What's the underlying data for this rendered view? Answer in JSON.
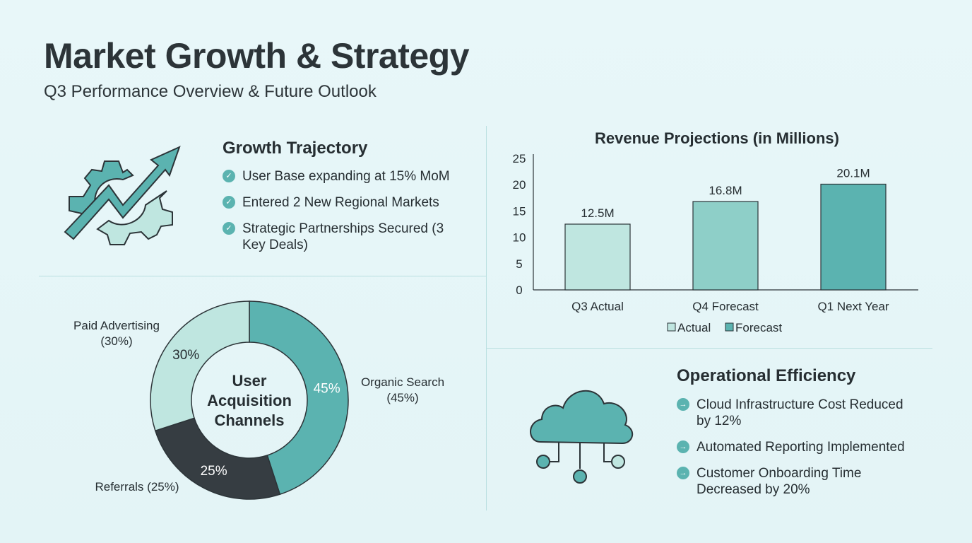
{
  "header": {
    "title": "Market Growth & Strategy",
    "subtitle": "Q3 Performance Overview & Future Outlook"
  },
  "growth": {
    "title": "Growth Trajectory",
    "icon": "gear-growth-arrow-icon",
    "items": [
      "User Base expanding at 15% MoM",
      "Entered 2 New Regional Markets",
      "Strategic Partnerships Secured (3 Key Deals)"
    ]
  },
  "efficiency": {
    "title": "Operational Efficiency",
    "icon": "cloud-network-icon",
    "items": [
      "Cloud Infrastructure Cost Reduced by 12%",
      "Automated Reporting Implemented",
      "Customer Onboarding Time Decreased by 20%"
    ]
  },
  "colors": {
    "light": "#bfe6e0",
    "mid": "#8ecfc8",
    "teal": "#5bb3b0",
    "dark": "#363d42"
  },
  "chart_data": [
    {
      "type": "bar",
      "title": "Revenue Projections (in Millions)",
      "categories": [
        "Q3 Actual",
        "Q4 Forecast",
        "Q1 Next Year"
      ],
      "values": [
        12.5,
        16.8,
        20.1
      ],
      "data_labels": [
        "12.5M",
        "16.8M",
        "20.1M"
      ],
      "yticks": [
        0,
        5,
        10,
        15,
        20,
        25
      ],
      "ylim": [
        0,
        25
      ],
      "legend": [
        "Actual",
        "Forecast"
      ],
      "legend_placement": "bottom",
      "grid": false
    },
    {
      "type": "pie",
      "title": "User Acquisition Channels",
      "donut": true,
      "slices": [
        {
          "label": "Organic Search (45%)",
          "value": 45,
          "text": "45%",
          "color": "#5bb3b0"
        },
        {
          "label": "Referrals (25%)",
          "value": 25,
          "text": "25%",
          "color": "#363d42"
        },
        {
          "label": "Paid Advertising (30%)",
          "value": 30,
          "text": "30%",
          "color": "#bfe6e0"
        }
      ]
    }
  ]
}
